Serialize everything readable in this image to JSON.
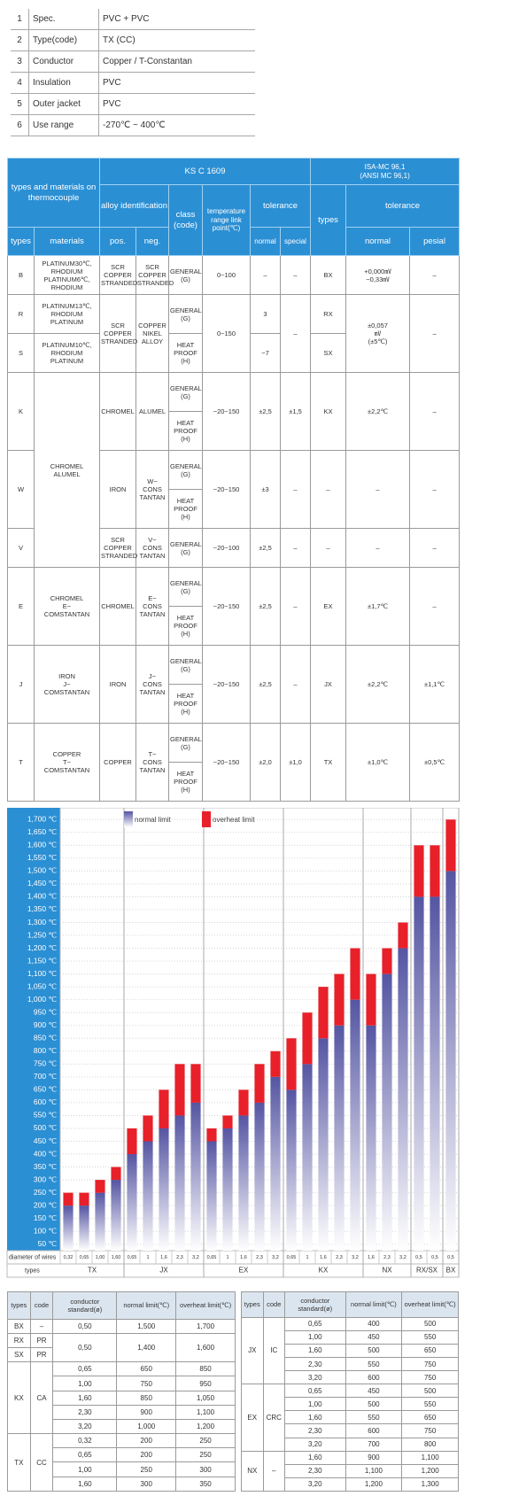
{
  "spec_table": {
    "rows": [
      [
        "1",
        "Spec.",
        "PVC + PVC"
      ],
      [
        "2",
        "Type(code)",
        "TX (CC)"
      ],
      [
        "3",
        "Conductor",
        "Copper / T-Constantan"
      ],
      [
        "4",
        "Insulation",
        "PVC"
      ],
      [
        "5",
        "Outer jacket",
        "PVC"
      ],
      [
        "6",
        "Use range",
        "-270℃ ~ 400℃"
      ]
    ]
  },
  "thermo_table": {
    "header": {
      "types_materials": "types and materials on thermocouple",
      "ks": "KS C 1609",
      "isa": [
        "ISA-MC 96,1",
        "(ANSI MC 96,1)"
      ],
      "alloy": "alloy identification",
      "class": "class (code)",
      "temp": "temperature range link point(℃)",
      "tolerance": "tolerance",
      "isa_types": "types",
      "isa_tolerance": "tolerance",
      "types": "types",
      "materials": "materials",
      "pos": "pos.",
      "neg": "neg.",
      "normal": "normal",
      "special": "special",
      "isa_normal": "normal",
      "isa_pesial": "pesial"
    },
    "rows": [
      {
        "type": "B",
        "materials": [
          "PLATINUM30℃, RHODIUM",
          "PLATINUM6℃, RHODIUM"
        ],
        "pos": [
          "SCR",
          "COPPER",
          "STRANDED"
        ],
        "neg": [
          "SCR",
          "COPPER",
          "STRANDED"
        ],
        "class": [
          "GENERAL (G)"
        ],
        "temp": "0~100",
        "normal": "–",
        "special": "–",
        "isa_type": "BX",
        "isa_normal": [
          "+0,000㎷",
          "−0,33㎷"
        ],
        "isa_pesial": "–"
      },
      {
        "type": "R",
        "materials": [
          "PLATINUM13℃, RHODIUM",
          "PLATINUM"
        ],
        "pos": [
          "SCR",
          "COPPER",
          "STRANDED"
        ],
        "neg": [
          "COPPER",
          "NIKEL",
          "ALLOY"
        ],
        "class": [
          "GENERAL (G)",
          "HEAT PROOF (H)"
        ],
        "temp": "0~150",
        "normal": "3",
        "special": "–",
        "isa_type": "RX",
        "isa_normal": [
          "±0,057",
          "㎷",
          "(±5℃)"
        ],
        "isa_pesial": "–"
      },
      {
        "type": "S",
        "materials": [
          "PLATINUM10℃, RHODIUM",
          "PLATINUM"
        ],
        "normal": "−7",
        "isa_type": "SX"
      },
      {
        "type": "K",
        "materials": [
          "CHROMEL",
          "ALUMEL"
        ],
        "pos": [
          "CHROMEL"
        ],
        "neg": [
          "ALUMEL"
        ],
        "class": [
          "GENERAL (G)",
          "HEAT PROOF (H)"
        ],
        "temp": "−20~150",
        "normal": "±2,5",
        "special": "±1,5",
        "isa_type": "KX",
        "isa_normal": [
          "±2,2℃"
        ],
        "isa_pesial": "–"
      },
      {
        "type": "W",
        "pos": [
          "IRON"
        ],
        "neg": [
          "W−",
          "CONS",
          "TANTAN"
        ],
        "class": [
          "GENERAL (G)",
          "HEAT PROOF (H)"
        ],
        "temp": "−20~150",
        "normal": "±3",
        "special": "–",
        "isa_type": "–",
        "isa_normal": [
          "–"
        ],
        "isa_pesial": "–"
      },
      {
        "type": "V",
        "pos": [
          "SCR",
          "COPPER",
          "STRANDED"
        ],
        "neg": [
          "V−",
          "CONS",
          "TANTAN"
        ],
        "class": [
          "GENERAL (G)"
        ],
        "temp": "−20~100",
        "normal": "±2,5",
        "special": "–",
        "isa_type": "–",
        "isa_normal": [
          "–"
        ],
        "isa_pesial": "–"
      },
      {
        "type": "E",
        "materials": [
          "CHROMEL",
          "E−",
          "COMSTANTAN"
        ],
        "pos": [
          "CHROMEL"
        ],
        "neg": [
          "E−",
          "CONS",
          "TANTAN"
        ],
        "class": [
          "GENERAL (G)",
          "HEAT PROOF (H)"
        ],
        "temp": "−20~150",
        "normal": "±2,5",
        "special": "–",
        "isa_type": "EX",
        "isa_normal": [
          "±1,7℃"
        ],
        "isa_pesial": "–"
      },
      {
        "type": "J",
        "materials": [
          "IRON",
          "J−",
          "COMSTANTAN"
        ],
        "pos": [
          "IRON"
        ],
        "neg": [
          "J−",
          "CONS",
          "TANTAN"
        ],
        "class": [
          "GENERAL (G)",
          "HEAT PROOF (H)"
        ],
        "temp": "−20~150",
        "normal": "±2,5",
        "special": "–",
        "isa_type": "JX",
        "isa_normal": [
          "±2,2℃"
        ],
        "isa_pesial": "±1,1℃"
      },
      {
        "type": "T",
        "materials": [
          "COPPER",
          "T−",
          "COMSTANTAN"
        ],
        "pos": [
          "COPPER"
        ],
        "neg": [
          "T−",
          "CONS",
          "TANTAN"
        ],
        "class": [
          "GENERAL (G)",
          "HEAT PROOF (H)"
        ],
        "temp": "−20~150",
        "normal": "±2,0",
        "special": "±1,0",
        "isa_type": "TX",
        "isa_normal": [
          "±1,0℃"
        ],
        "isa_pesial": "±0,5℃"
      }
    ]
  },
  "chart_data": {
    "type": "bar",
    "x_label": "diameter of wires",
    "group_label": "types",
    "categories": [
      "0,32",
      "0,65",
      "1,00",
      "1,60",
      "0,65",
      "1",
      "1,6",
      "2,3",
      "3,2",
      "0,65",
      "1",
      "1,6",
      "2,3",
      "3,2",
      "0,65",
      "1",
      "1,6",
      "2,3",
      "3,2",
      "1,6",
      "2,3",
      "3,2",
      "0,5",
      "0,5",
      "0,5"
    ],
    "groups": [
      "TX",
      "TX",
      "TX",
      "TX",
      "JX",
      "JX",
      "JX",
      "JX",
      "JX",
      "EX",
      "EX",
      "EX",
      "EX",
      "EX",
      "KX",
      "KX",
      "KX",
      "KX",
      "KX",
      "NX",
      "NX",
      "NX",
      "RX/SX",
      "RX/SX",
      "BX"
    ],
    "series": [
      {
        "name": "normal limit",
        "color": "#5555a3",
        "values": [
          200,
          200,
          250,
          300,
          400,
          450,
          500,
          550,
          600,
          450,
          500,
          550,
          600,
          700,
          650,
          750,
          850,
          900,
          1000,
          900,
          1100,
          1200,
          1400,
          1400,
          1500
        ]
      },
      {
        "name": "overheat limit",
        "color": "#e8202a",
        "values": [
          250,
          250,
          300,
          350,
          500,
          550,
          650,
          750,
          750,
          500,
          550,
          650,
          750,
          800,
          850,
          950,
          1050,
          1100,
          1200,
          1100,
          1200,
          1300,
          1600,
          1600,
          1700
        ]
      }
    ],
    "ylim": [
      25,
      1725
    ],
    "yticks": [
      {
        "value": 50,
        "label": "50 ℃"
      },
      {
        "value": 100,
        "label": "100 ℃"
      },
      {
        "value": 150,
        "label": "150 ℃"
      },
      {
        "value": 200,
        "label": "200 ℃"
      },
      {
        "value": 250,
        "label": "250 ℃"
      },
      {
        "value": 300,
        "label": "300 ℃"
      },
      {
        "value": 350,
        "label": "350 ℃"
      },
      {
        "value": 400,
        "label": "400 ℃"
      },
      {
        "value": 450,
        "label": "450 ℃"
      },
      {
        "value": 500,
        "label": "500 ℃"
      },
      {
        "value": 550,
        "label": "550 ℃"
      },
      {
        "value": 600,
        "label": "600 ℃"
      },
      {
        "value": 650,
        "label": "650 ℃"
      },
      {
        "value": 700,
        "label": "700 ℃"
      },
      {
        "value": 750,
        "label": "750 ℃"
      },
      {
        "value": 800,
        "label": "800 ℃"
      },
      {
        "value": 850,
        "label": "850 ℃"
      },
      {
        "value": 900,
        "label": "900 ℃"
      },
      {
        "value": 950,
        "label": "950 ℃"
      },
      {
        "value": 1000,
        "label": "1,000 ℃"
      },
      {
        "value": 1050,
        "label": "1,050 ℃"
      },
      {
        "value": 1100,
        "label": "1,100 ℃"
      },
      {
        "value": 1150,
        "label": "1,150 ℃"
      },
      {
        "value": 1200,
        "label": "1,200 ℃"
      },
      {
        "value": 1250,
        "label": "1,250 ℃"
      },
      {
        "value": 1300,
        "label": "1,300 ℃"
      },
      {
        "value": 1350,
        "label": "1,350 ℃"
      },
      {
        "value": 1400,
        "label": "1,400 ℃"
      },
      {
        "value": 1450,
        "label": "1,450 ℃"
      },
      {
        "value": 1500,
        "label": "1,500 ℃"
      },
      {
        "value": 1550,
        "label": "1,550 ℃"
      },
      {
        "value": 1600,
        "label": "1,600 ℃"
      },
      {
        "value": 1650,
        "label": "1,650 ℃"
      },
      {
        "value": 1700,
        "label": "1,700 ℃"
      }
    ],
    "grid": true,
    "legend": "top"
  },
  "limit_tables": [
    {
      "header": [
        "types",
        "code",
        "conductor standard(ø)",
        "normal limit(℃)",
        "overheat limit(℃)"
      ],
      "rows": [
        [
          "BX",
          "–",
          "0,50",
          "1,500",
          "1,700"
        ],
        [
          "RX",
          "PR",
          "0,50",
          "1,400",
          "1,600"
        ],
        [
          "SX",
          "PR"
        ],
        [
          "KX",
          "CA",
          "0,65",
          "650",
          "850"
        ],
        [
          "1,00",
          "750",
          "950"
        ],
        [
          "1,60",
          "850",
          "1,050"
        ],
        [
          "2,30",
          "900",
          "1,100"
        ],
        [
          "3,20",
          "1,000",
          "1,200"
        ],
        [
          "TX",
          "CC",
          "0,32",
          "200",
          "250"
        ],
        [
          "0,65",
          "200",
          "250"
        ],
        [
          "1,00",
          "250",
          "300"
        ],
        [
          "1,60",
          "300",
          "350"
        ]
      ]
    },
    {
      "header": [
        "types",
        "code",
        "conductor standard(ø)",
        "normal limit(℃)",
        "overheat limit(℃)"
      ],
      "rows": [
        [
          "JX",
          "IC",
          "0,65",
          "400",
          "500"
        ],
        [
          "1,00",
          "450",
          "550"
        ],
        [
          "1,60",
          "500",
          "650"
        ],
        [
          "2,30",
          "550",
          "750"
        ],
        [
          "3,20",
          "600",
          "750"
        ],
        [
          "EX",
          "CRC",
          "0,65",
          "450",
          "500"
        ],
        [
          "1,00",
          "500",
          "550"
        ],
        [
          "1,60",
          "550",
          "650"
        ],
        [
          "2,30",
          "600",
          "750"
        ],
        [
          "3,20",
          "700",
          "800"
        ],
        [
          "NX",
          "–",
          "1,60",
          "900",
          "1,100"
        ],
        [
          "2,30",
          "1,100",
          "1,200"
        ],
        [
          "3,20",
          "1,200",
          "1,300"
        ]
      ]
    }
  ]
}
